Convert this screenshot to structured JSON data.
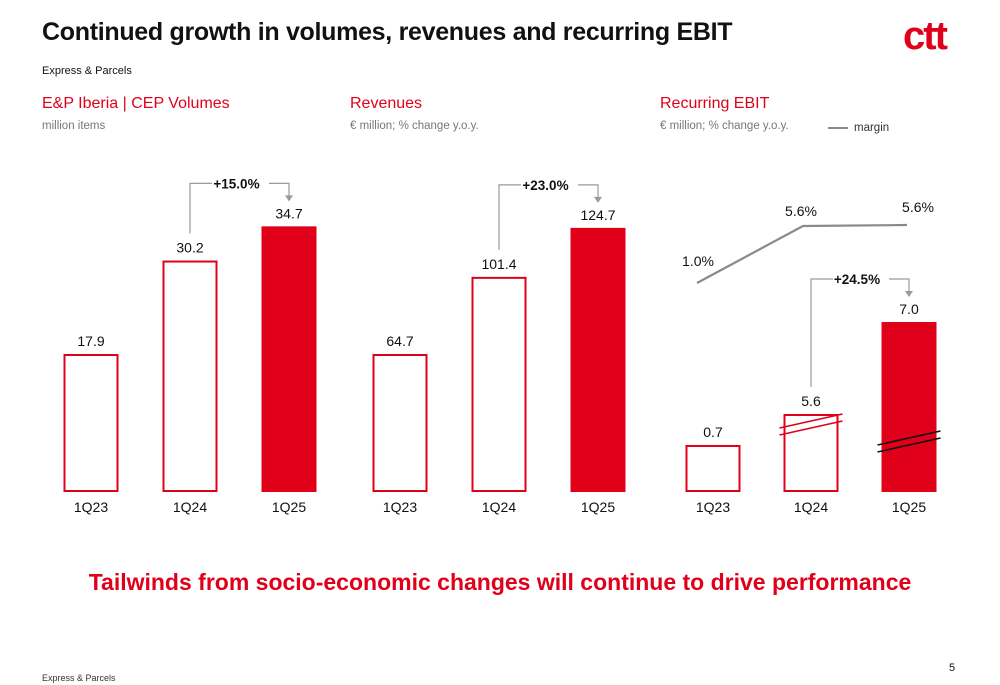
{
  "header": {
    "title": "Continued growth in volumes, revenues and recurring EBIT",
    "logo_text": "ctt",
    "section": "Express & Parcels"
  },
  "colors": {
    "accent": "#e0001a",
    "line": "#8a8a8a",
    "muted": "#777777"
  },
  "chart_data": [
    {
      "type": "bar",
      "title": "E&P Iberia | CEP Volumes",
      "subtitle": "million items",
      "categories": [
        "1Q23",
        "1Q24",
        "1Q25"
      ],
      "values": [
        17.9,
        30.2,
        34.7
      ],
      "value_labels": [
        "17.9",
        "30.2",
        "34.7"
      ],
      "growth_label": "+15.0%"
    },
    {
      "type": "bar",
      "title": "Revenues",
      "subtitle": "€ million; % change y.o.y.",
      "categories": [
        "1Q23",
        "1Q24",
        "1Q25"
      ],
      "values": [
        64.7,
        101.4,
        124.7
      ],
      "value_labels": [
        "64.7",
        "101.4",
        "124.7"
      ],
      "growth_label": "+23.0%"
    },
    {
      "type": "bar",
      "title": "Recurring EBIT",
      "subtitle": "€ million; % change y.o.y.",
      "categories": [
        "1Q23",
        "1Q24",
        "1Q25"
      ],
      "values": [
        0.7,
        5.6,
        7.0
      ],
      "value_labels": [
        "0.7",
        "5.6",
        "7.0"
      ],
      "growth_label": "+24.5%",
      "broken_axis": true,
      "line_series": {
        "name": "margin",
        "values": [
          1.0,
          5.6,
          5.6
        ],
        "value_labels": [
          "1.0%",
          "5.6%",
          "5.6%"
        ]
      }
    }
  ],
  "tagline": "Tailwinds from socio-economic changes will continue to drive performance",
  "footer": {
    "text": "Express & Parcels",
    "page_number": "5"
  }
}
